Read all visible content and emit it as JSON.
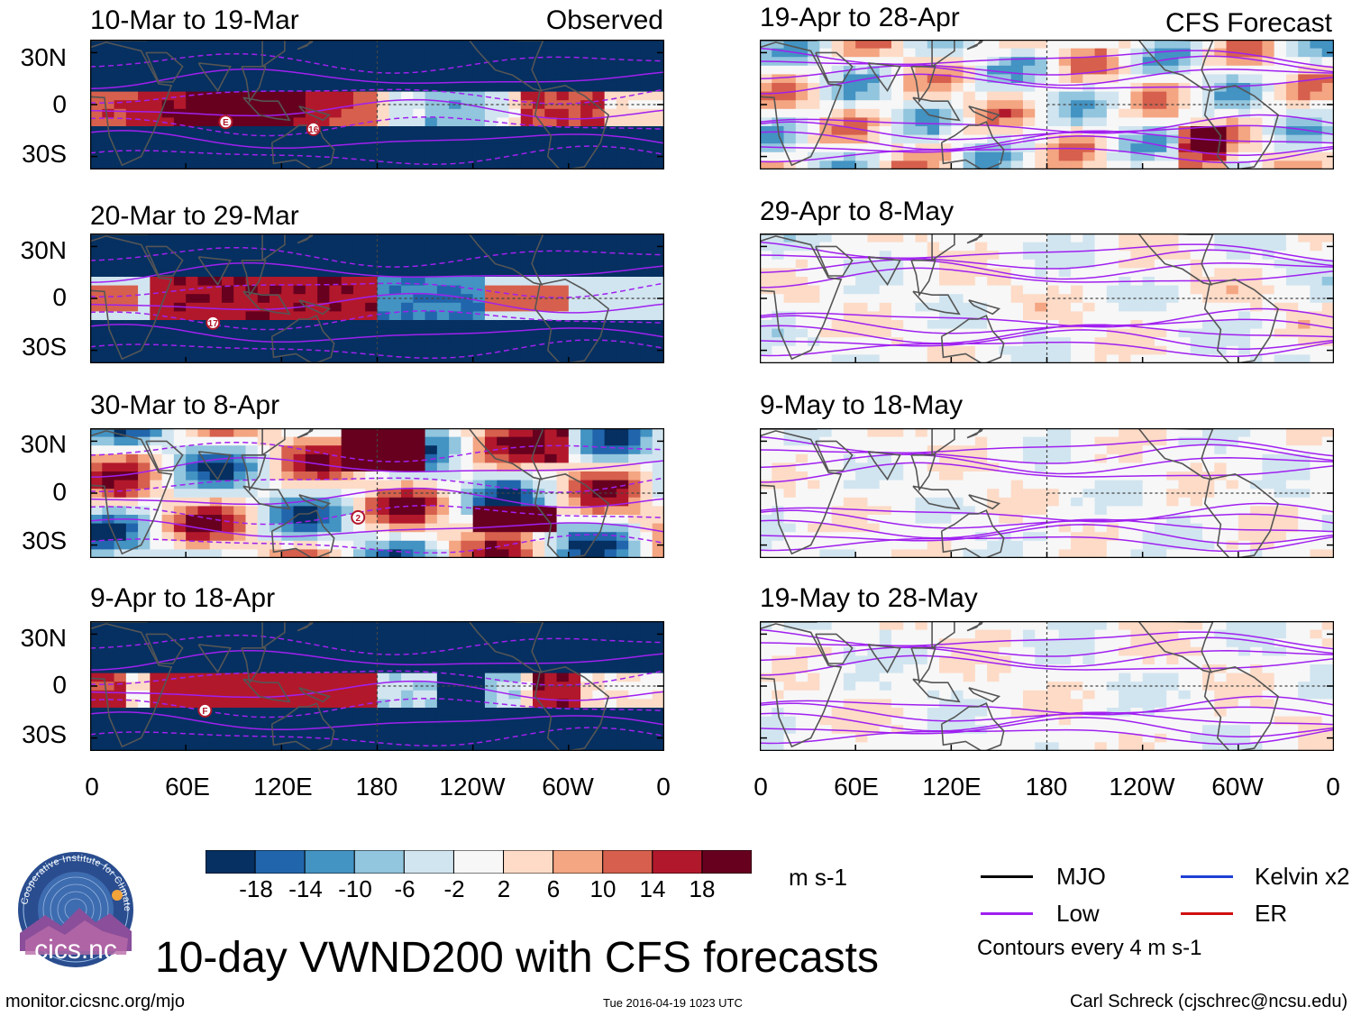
{
  "chart_data": {
    "type": "heatmap",
    "variable": "10-day VWND200 with CFS forecasts",
    "units": "m s-1",
    "x_tick_labels": [
      "0",
      "60E",
      "120E",
      "180",
      "120W",
      "60W",
      "0"
    ],
    "y_tick_labels": [
      "30N",
      "0",
      "30S"
    ],
    "colorbar_levels": [
      "-18",
      "-14",
      "-10",
      "-6",
      "-2",
      "2",
      "6",
      "10",
      "14",
      "18"
    ],
    "colorbar_colors": [
      "#053061",
      "#2166ac",
      "#4393c3",
      "#92c5de",
      "#d1e5f0",
      "#f7f7f7",
      "#fddbc7",
      "#f4a582",
      "#d6604d",
      "#b2182b",
      "#67001f"
    ],
    "panels": [
      {
        "column": "left",
        "row": 0,
        "period": "10-Mar to 19-Mar",
        "tag": "Observed",
        "pattern": "observed1",
        "storm_labels": [
          "E",
          "16"
        ]
      },
      {
        "column": "left",
        "row": 1,
        "period": "20-Mar to 29-Mar",
        "tag": "",
        "pattern": "observed2",
        "storm_labels": [
          "17"
        ]
      },
      {
        "column": "left",
        "row": 2,
        "period": "30-Mar to 8-Apr",
        "tag": "",
        "pattern": "observed3",
        "storm_labels": [
          "2"
        ]
      },
      {
        "column": "left",
        "row": 3,
        "period": "9-Apr to 18-Apr",
        "tag": "",
        "pattern": "observed4",
        "storm_labels": [
          "F"
        ]
      },
      {
        "column": "right",
        "row": 0,
        "period": "19-Apr to 28-Apr",
        "tag": "CFS Forecast",
        "pattern": "forecast1",
        "storm_labels": []
      },
      {
        "column": "right",
        "row": 1,
        "period": "29-Apr to 8-May",
        "tag": "",
        "pattern": "forecast2",
        "storm_labels": []
      },
      {
        "column": "right",
        "row": 2,
        "period": "9-May to 18-May",
        "tag": "",
        "pattern": "forecast3",
        "storm_labels": []
      },
      {
        "column": "right",
        "row": 3,
        "period": "19-May to 28-May",
        "tag": "",
        "pattern": "forecast4",
        "storm_labels": []
      }
    ]
  },
  "legend": {
    "items": [
      {
        "label": "MJO",
        "color": "#000000"
      },
      {
        "label": "Low",
        "color": "#a020f0"
      },
      {
        "label": "Kelvin x2",
        "color": "#1f3fd6"
      },
      {
        "label": "ER",
        "color": "#d01010"
      }
    ],
    "note": "Contours every 4 m s-1"
  },
  "title": "10-day VWND200 with CFS forecasts",
  "footer": {
    "left": "monitor.cicsnc.org/mjo",
    "center": "Tue 2016-04-19 1023 UTC",
    "right": "Carl Schreck (cjschrec@ncsu.edu)"
  },
  "logo": {
    "ring_text": "Cooperative Institute for Climate and Satellites",
    "name": "cics.nc"
  }
}
